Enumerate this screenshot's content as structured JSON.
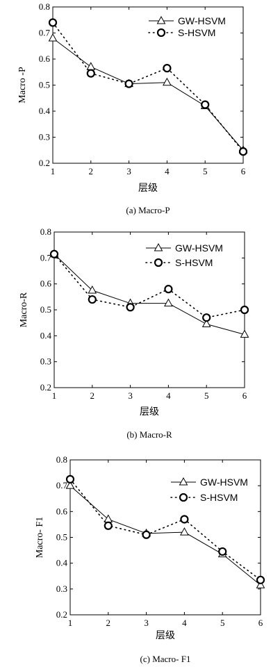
{
  "chart_data": [
    {
      "type": "line",
      "caption": "(a) Macro-P",
      "xlabel": "层级",
      "ylabel": "Macro -P",
      "categories": [
        1,
        2,
        3,
        4,
        5,
        6
      ],
      "xlim": [
        1,
        6
      ],
      "ylim": [
        0.2,
        0.8
      ],
      "yticks": [
        0.2,
        0.3,
        0.4,
        0.5,
        0.6,
        0.7,
        0.8
      ],
      "grid": false,
      "legend_position": "top-right",
      "series": [
        {
          "name": "GW-HSVM",
          "style": "solid",
          "marker": "triangle",
          "values": [
            0.68,
            0.57,
            0.505,
            0.51,
            0.42,
            0.25
          ]
        },
        {
          "name": "S-HSVM",
          "style": "dotted",
          "marker": "circle",
          "values": [
            0.74,
            0.545,
            0.505,
            0.565,
            0.425,
            0.245
          ]
        }
      ]
    },
    {
      "type": "line",
      "caption": "(b) Macro-R",
      "xlabel": "层级",
      "ylabel": "Macro-R",
      "categories": [
        1,
        2,
        3,
        4,
        5,
        6
      ],
      "xlim": [
        1,
        6
      ],
      "ylim": [
        0.2,
        0.8
      ],
      "yticks": [
        0.2,
        0.3,
        0.4,
        0.5,
        0.6,
        0.7,
        0.8
      ],
      "grid": false,
      "legend_position": "top-right",
      "series": [
        {
          "name": "GW-HSVM",
          "style": "solid",
          "marker": "triangle",
          "values": [
            0.715,
            0.575,
            0.525,
            0.525,
            0.445,
            0.405
          ]
        },
        {
          "name": "S-HSVM",
          "style": "dotted",
          "marker": "circle",
          "values": [
            0.715,
            0.54,
            0.51,
            0.58,
            0.47,
            0.5
          ]
        }
      ]
    },
    {
      "type": "line",
      "caption": "(c) Macro- F1",
      "xlabel": "层级",
      "ylabel": "Macro- F1",
      "categories": [
        1,
        2,
        3,
        4,
        5,
        6
      ],
      "xlim": [
        1,
        6
      ],
      "ylim": [
        0.2,
        0.8
      ],
      "yticks": [
        0.2,
        0.3,
        0.4,
        0.5,
        0.6,
        0.7,
        0.8
      ],
      "grid": false,
      "legend_position": "top-right",
      "series": [
        {
          "name": "GW-HSVM",
          "style": "solid",
          "marker": "triangle",
          "values": [
            0.7,
            0.57,
            0.515,
            0.52,
            0.435,
            0.315
          ]
        },
        {
          "name": "S-HSVM",
          "style": "dotted",
          "marker": "circle",
          "values": [
            0.725,
            0.545,
            0.51,
            0.57,
            0.445,
            0.335
          ]
        }
      ]
    }
  ]
}
